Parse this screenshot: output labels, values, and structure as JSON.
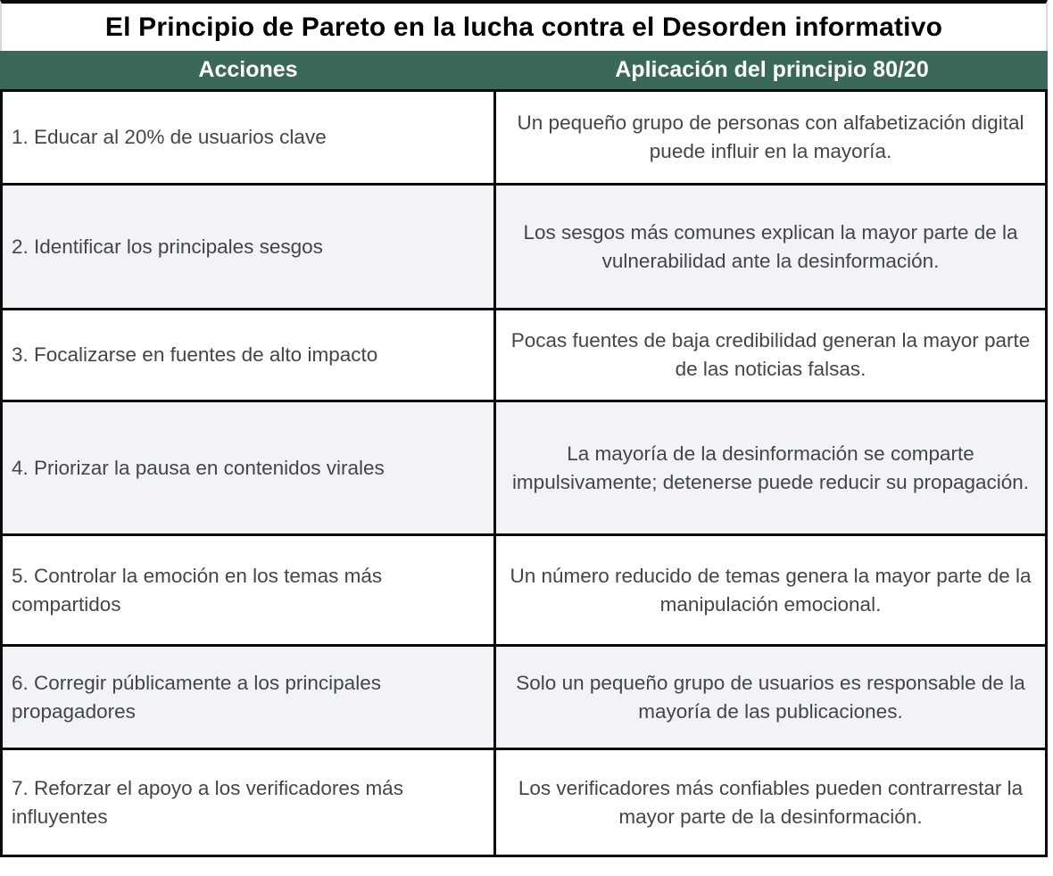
{
  "title": "El Principio de Pareto en la lucha contra el Desorden informativo",
  "table": {
    "headers": [
      "Acciones",
      "Aplicación del principio 80/20"
    ],
    "rows": [
      {
        "accion": "1. Educar al 20% de usuarios clave",
        "aplicacion": "Un pequeño grupo de personas con alfabetización digital puede influir en la mayoría."
      },
      {
        "accion": "2. Identificar los principales sesgos",
        "aplicacion": "Los sesgos más comunes explican la mayor parte de la vulnerabilidad ante la desinformación."
      },
      {
        "accion": "3. Focalizarse en fuentes de alto impacto",
        "aplicacion": "Pocas fuentes de baja credibilidad generan la mayor parte de las noticias falsas."
      },
      {
        "accion": "4. Priorizar la pausa en contenidos virales",
        "aplicacion": "La mayoría de la desinformación se comparte impulsivamente; detenerse puede reducir su propagación."
      },
      {
        "accion": "5. Controlar la emoción en los temas más compartidos",
        "aplicacion": "Un número reducido de temas genera la mayor parte de la manipulación emocional."
      },
      {
        "accion": "6. Corregir públicamente a los principales propagadores",
        "aplicacion": "Solo un pequeño grupo de usuarios es responsable de la mayoría de las publicaciones."
      },
      {
        "accion": "7. Reforzar el apoyo a los verificadores más influyentes",
        "aplicacion": "Los verificadores más confiables pueden contrarrestar la mayor parte de la desinformación."
      }
    ]
  },
  "colors": {
    "title_text": "#000000",
    "header_bg": "#3A6A57",
    "header_text": "#FFFFFF",
    "row_bg": "#FFFFFF",
    "row_alt_bg": "#F1F3F7",
    "body_text": "#434649",
    "border": "#0B0B0B"
  }
}
